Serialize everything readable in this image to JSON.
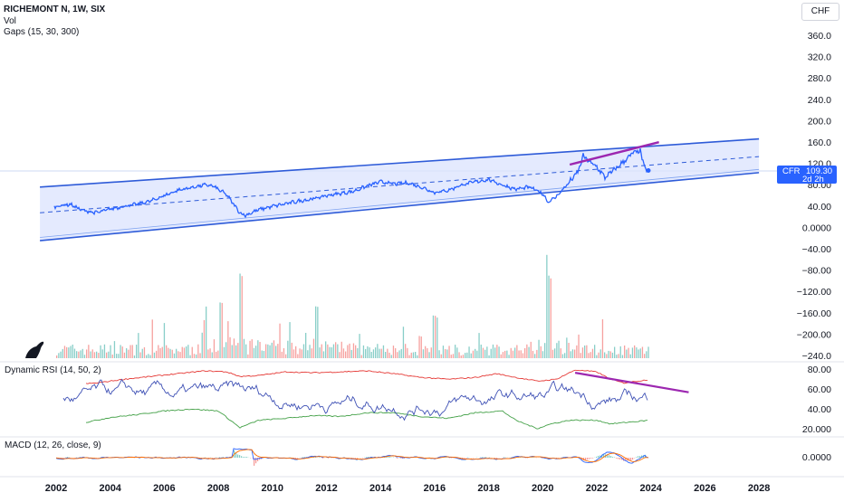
{
  "header": {
    "symbol": "RICHEMONT N, 1W, SIX",
    "vol_label": "Vol",
    "gaps_label": "Gaps (15, 30, 300)",
    "currency_button": "CHF"
  },
  "price_tag": {
    "ticker": "CFR",
    "price": "109.30",
    "countdown": "2d 2h"
  },
  "colors": {
    "price_line": "#2962ff",
    "channel_fill": "#dbe3fd",
    "channel_border": "#2e5bd8",
    "divergence_line": "#9c27b0",
    "volume_up": "#26a69a",
    "volume_down": "#ef5350",
    "rsi_line": "#3f51b5",
    "rsi_upper": "#e53935",
    "rsi_lower": "#43a047",
    "macd_line": "#2962ff",
    "signal_line": "#ff6d00"
  },
  "chart_data": [
    {
      "type": "line",
      "pane": "price",
      "x_ticks": [
        "2002",
        "2004",
        "2006",
        "2008",
        "2010",
        "2012",
        "2014",
        "2016",
        "2018",
        "2020",
        "2022",
        "2024",
        "2026",
        "2028"
      ],
      "y_ticks": [
        "360.0",
        "320.0",
        "280.0",
        "240.0",
        "200.0",
        "160.0",
        "120.0",
        "80.00",
        "40.00",
        "0.0000",
        "−40.00",
        "−80.00",
        "−120.00",
        "−160.00",
        "−200.00",
        "−240.0"
      ],
      "ylim": [
        -240,
        380
      ],
      "series": [
        {
          "x": [
            2002.0,
            2002.5,
            2003.0,
            2003.5,
            2004.0,
            2004.5,
            2005.0,
            2005.5,
            2006.0,
            2006.5,
            2007.0,
            2007.5,
            2007.8,
            2008.3,
            2008.8,
            2009.0,
            2009.5,
            2010.0,
            2010.5,
            2011.0,
            2011.5,
            2012.0,
            2012.5,
            2013.0,
            2013.5,
            2014.0,
            2014.5,
            2015.0,
            2015.5,
            2016.0,
            2016.5,
            2017.0,
            2017.5,
            2018.0,
            2018.5,
            2019.0,
            2019.5,
            2020.0,
            2020.2,
            2020.5,
            2021.0,
            2021.3,
            2021.5,
            2021.8,
            2022.0,
            2022.3,
            2022.6,
            2023.0,
            2023.3,
            2023.6,
            2023.8
          ],
          "values": [
            42,
            46,
            34,
            30,
            37,
            42,
            46,
            52,
            62,
            72,
            77,
            82,
            80,
            64,
            30,
            25,
            36,
            42,
            47,
            52,
            56,
            62,
            66,
            70,
            80,
            88,
            84,
            86,
            78,
            68,
            72,
            82,
            88,
            92,
            82,
            74,
            78,
            66,
            50,
            60,
            88,
            106,
            136,
            122,
            116,
            96,
            108,
            126,
            140,
            146,
            109
          ]
        }
      ],
      "annotations": [
        {
          "type": "regression_channel",
          "x": [
            2001.4,
            2028.0
          ],
          "upper": [
            78,
            168
          ],
          "mid": [
            30,
            135
          ],
          "lower": [
            -22,
            105
          ]
        },
        {
          "type": "trend_line",
          "x": [
            2021.0,
            2024.3
          ],
          "values": [
            120,
            162
          ]
        },
        {
          "type": "price_label",
          "value": 109.3
        }
      ]
    },
    {
      "type": "bar",
      "pane": "volume",
      "title": "Vol",
      "spikes": [
        {
          "x": 2008.8,
          "size": 1.0
        },
        {
          "x": 2020.2,
          "size": 0.98
        },
        {
          "x": 2008.1,
          "size": 0.65
        },
        {
          "x": 2011.6,
          "size": 0.6
        },
        {
          "x": 2016.0,
          "size": 0.48
        },
        {
          "x": 2007.5,
          "size": 0.45
        }
      ]
    },
    {
      "type": "line",
      "pane": "rsi",
      "title": "Dynamic RSI (14, 50, 2)",
      "y_ticks": [
        "80.00",
        "60.00",
        "40.00",
        "20.000"
      ],
      "ylim": [
        15,
        85
      ],
      "series": [
        {
          "name": "upper band",
          "x": [
            2002.5,
            2003.5,
            2004.5,
            2005.5,
            2006.5,
            2007.5,
            2008.3,
            2008.8,
            2009.5,
            2010.5,
            2011.5,
            2012.5,
            2013.5,
            2014.5,
            2015.5,
            2016.5,
            2017.5,
            2018.3,
            2019.0,
            2019.8,
            2020.5,
            2021.2,
            2022.0,
            2022.5,
            2023.0,
            2023.5,
            2024.0
          ],
          "values": [
            68,
            70,
            74,
            77,
            80,
            83,
            82,
            77,
            78,
            82,
            81,
            82,
            83,
            80,
            76,
            74,
            76,
            80,
            76,
            72,
            74,
            84,
            82,
            74,
            70,
            72,
            74
          ]
        },
        {
          "name": "lower band",
          "x": [
            2003.0,
            2004.0,
            2005.0,
            2006.0,
            2007.0,
            2008.0,
            2008.8,
            2009.5,
            2010.5,
            2011.5,
            2012.5,
            2013.5,
            2014.5,
            2015.5,
            2016.5,
            2017.5,
            2018.5,
            2019.0,
            2019.8,
            2020.3,
            2021.0,
            2022.0,
            2022.5,
            2023.2,
            2024.0
          ],
          "values": [
            27,
            33,
            36,
            40,
            42,
            40,
            22,
            30,
            32,
            35,
            34,
            38,
            38,
            34,
            32,
            38,
            40,
            30,
            21,
            26,
            30,
            30,
            26,
            28,
            30
          ]
        }
      ],
      "annotations": [
        {
          "type": "trend_line",
          "x": [
            2021.2,
            2025.4
          ],
          "values": [
            81,
            60
          ]
        }
      ]
    },
    {
      "type": "line",
      "pane": "macd",
      "title": "MACD (12, 26, close, 9)",
      "y_ticks": [
        "0.0000"
      ],
      "ylim": [
        -1,
        1
      ]
    }
  ]
}
